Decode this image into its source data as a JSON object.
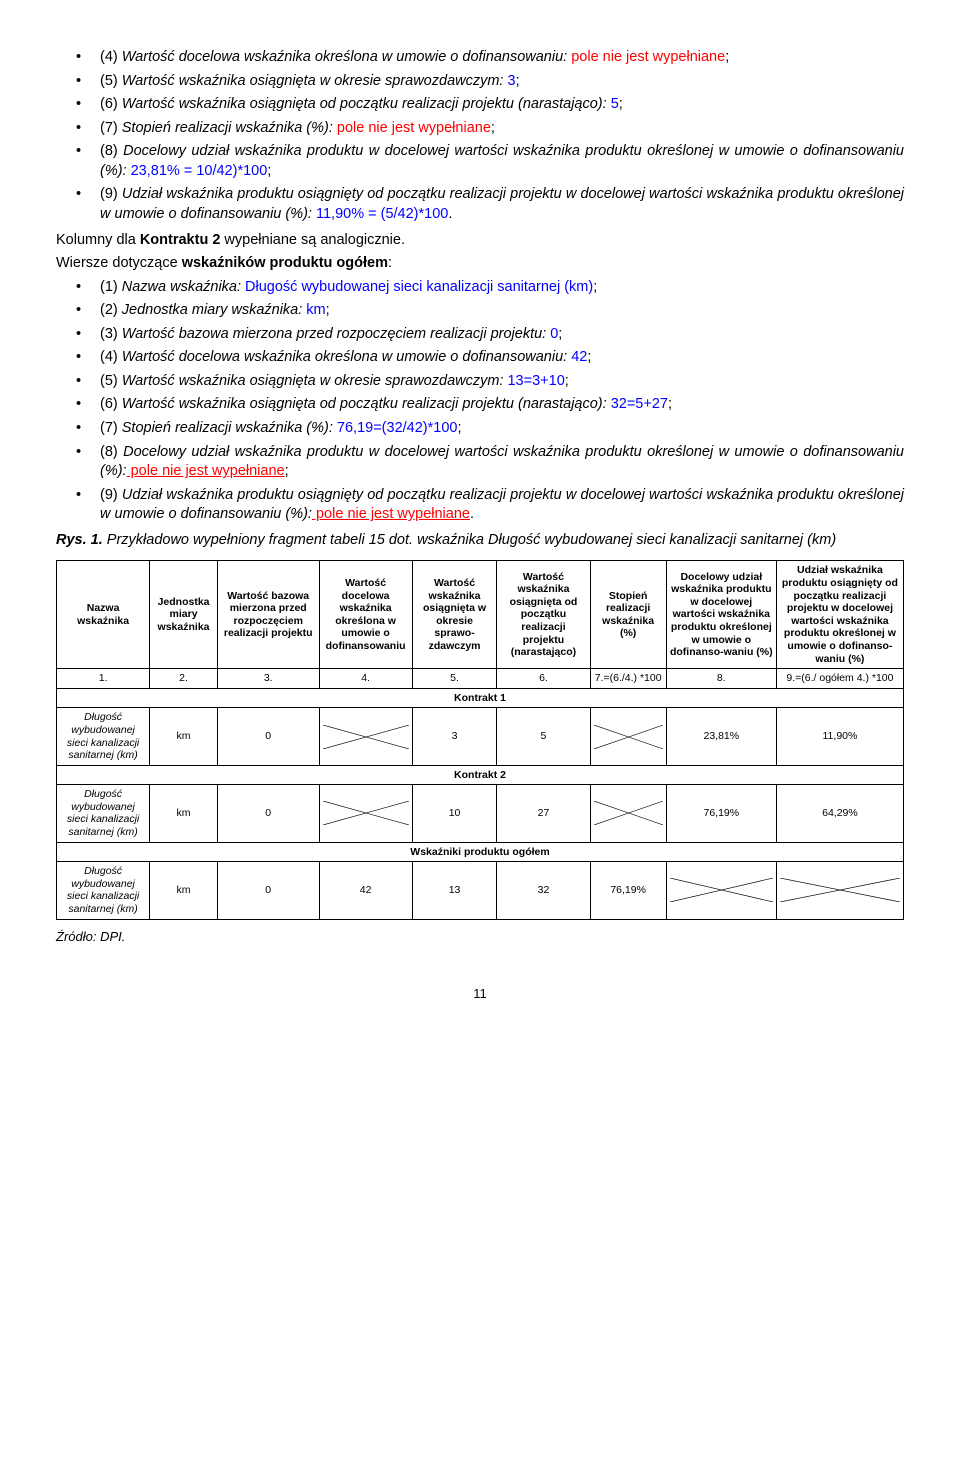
{
  "list1": [
    {
      "pre": "(4) ",
      "italic": "Wartość docelowa wskaźnika określona w umowie o dofinansowaniu:",
      "red": " pole nie jest wypełniane",
      "post": ";"
    },
    {
      "pre": "(5) ",
      "italic": "Wartość wskaźnika osiągnięta w okresie sprawozdawczym:",
      "blue": " 3",
      "post": ";"
    },
    {
      "pre": "(6) ",
      "italic": "Wartość wskaźnika osiągnięta od początku realizacji projektu (narastająco):",
      "blue": " 5",
      "post": ";"
    },
    {
      "pre": "(7) ",
      "italic": "Stopień realizacji wskaźnika (%):",
      "red": " pole nie jest wypełniane",
      "post": ";"
    },
    {
      "pre": "(8) ",
      "italic": "Docelowy udział wskaźnika produktu w docelowej wartości wskaźnika produktu określonej w umowie o dofinansowaniu (%):",
      "blue": " 23,81% = 10/42)*100",
      "post": ";"
    },
    {
      "pre": "(9) ",
      "italic": "Udział wskaźnika produktu osiągnięty od początku realizacji projektu w docelowej wartości wskaźnika produktu określonej w umowie o dofinansowaniu (%):",
      "blue": " 11,90% = (5/42)*100",
      "post": "."
    }
  ],
  "kolumny": {
    "pre": "Kolumny dla ",
    "bold": "Kontraktu 2",
    "post": " wypełniane są analogicznie."
  },
  "wiersze": {
    "pre": "Wiersze dotyczące ",
    "bold": "wskaźników produktu ogółem",
    "post": ":"
  },
  "list2": [
    {
      "pre": "(1) ",
      "italic": "Nazwa wskaźnika:",
      "blue": " Długość wybudowanej sieci kanalizacji sanitarnej (km)",
      "post": ";"
    },
    {
      "pre": "(2) ",
      "italic": "Jednostka miary wskaźnika:",
      "blue": " km",
      "post": ";"
    },
    {
      "pre": "(3) ",
      "italic": "Wartość bazowa mierzona przed rozpoczęciem realizacji projektu:",
      "blue": " 0",
      "post": ";"
    },
    {
      "pre": "(4) ",
      "italic": "Wartość docelowa wskaźnika określona w umowie o dofinansowaniu:",
      "blue": " 42",
      "post": ";"
    },
    {
      "pre": "(5) ",
      "italic": "Wartość wskaźnika osiągnięta w okresie sprawozdawczym:",
      "blue": " 13=3+10",
      "post": ";"
    },
    {
      "pre": "(6) ",
      "italic": "Wartość wskaźnika osiągnięta od początku realizacji projektu (narastająco):",
      "blue": " 32=5+27",
      "post": ";"
    },
    {
      "pre": "(7) ",
      "italic": "Stopień realizacji wskaźnika (%):",
      "blue": " 76,19=(32/42)*100",
      "post": ";"
    },
    {
      "pre": "(8) ",
      "italic": "Docelowy udział wskaźnika produktu w docelowej wartości wskaźnika produktu określonej w umowie o dofinansowaniu (%):",
      "redu": " pole nie jest wypełniane",
      "post": ";"
    },
    {
      "pre": "(9) ",
      "italic": "Udział wskaźnika produktu osiągnięty od początku realizacji projektu w docelowej wartości wskaźnika produktu określonej w umowie o dofinansowaniu (%):",
      "redu": " pole nie jest wypełniane",
      "post": "."
    }
  ],
  "rys": {
    "label": "Rys. 1.",
    "text": " Przykładowo wypełniony fragment tabeli 15 dot. wskaźnika Długość wybudowanej sieci kanalizacji sanitarnej (km)"
  },
  "table": {
    "headers": [
      "Nazwa wskaźnika",
      "Jednostka miary wskaźnika",
      "Wartość bazowa mierzona przed rozpoczęciem realizacji projektu",
      "Wartość docelowa wskaźnika określona w umowie o dofinansowaniu",
      "Wartość wskaźnika osiągnięta w okresie sprawo-zdawczym",
      "Wartość wskaźnika osiągnięta od początku realizacji projektu (narastająco)",
      "Stopień realizacji wskaźnika (%)",
      "Docelowy udział wskaźnika produktu w docelowej wartości wskaźnika produktu określonej w umowie o dofinanso-waniu (%)",
      "Udział wskaźnika produktu osiągnięty od początku realizacji projektu w docelowej wartości wskaźnika produktu określonej w umowie o dofinanso-waniu (%)"
    ],
    "nums": [
      "1.",
      "2.",
      "3.",
      "4.",
      "5.",
      "6.",
      "7.=(6./4.) *100",
      "8.",
      "9.=(6./ ogółem 4.) *100"
    ],
    "k1": "Kontrakt 1",
    "k2": "Kontrakt 2",
    "rowname": "Długość wybudowanej sieci kanalizacji sanitarnej (km)",
    "spanTitle": "Wskaźniki produktu ogółem",
    "r1": {
      "c2": "km",
      "c3": "0",
      "c5": "3",
      "c6": "5",
      "c8": "23,81%",
      "c9": "11,90%"
    },
    "r2": {
      "c2": "km",
      "c3": "0",
      "c5": "10",
      "c6": "27",
      "c8": "76,19%",
      "c9": "64,29%"
    },
    "r3": {
      "c2": "km",
      "c3": "0",
      "c4": "42",
      "c5": "13",
      "c6": "32",
      "c7": "76,19%"
    }
  },
  "source": "Źródło: DPI.",
  "pageNum": "11"
}
